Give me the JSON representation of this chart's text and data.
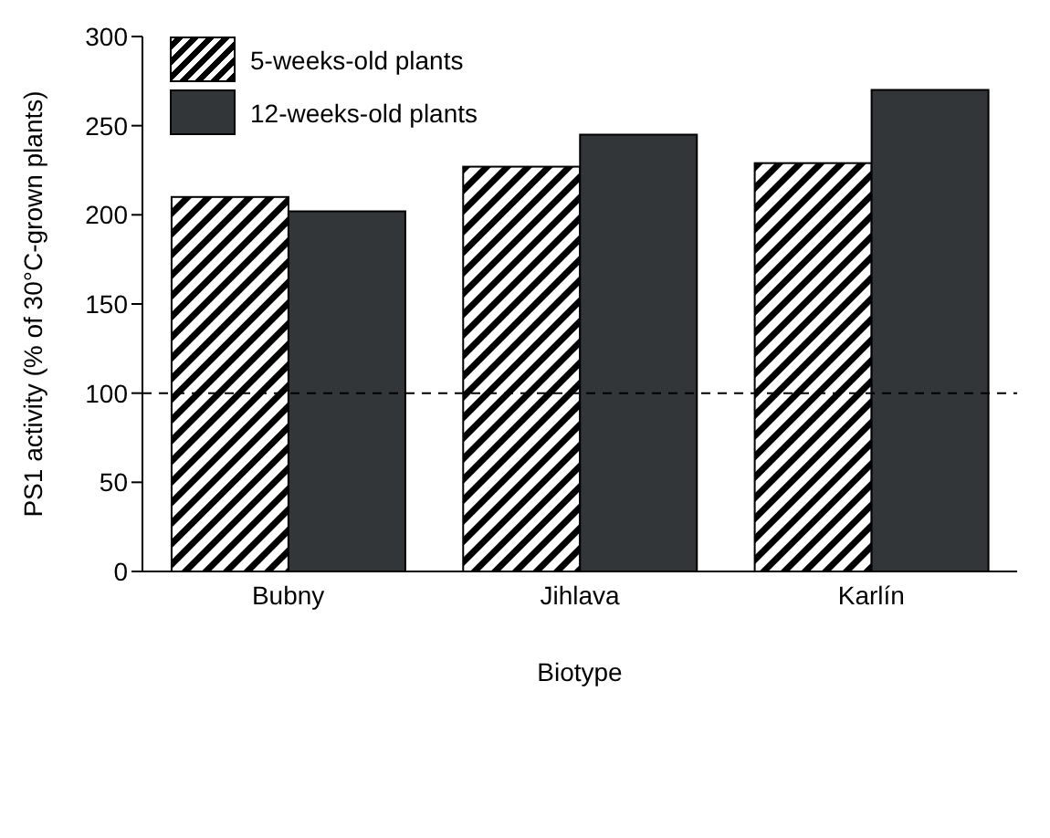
{
  "chart_data": {
    "type": "bar",
    "xlabel": "Biotype",
    "ylabel": "PS1 activity (% of 30°C-grown plants)",
    "categories": [
      "Bubny",
      "Jihlava",
      "Karlín"
    ],
    "series": [
      {
        "name": "5-weeks-old plants",
        "color": "#000000",
        "values": [
          210,
          227,
          229
        ]
      },
      {
        "name": "12-weeks-old plants",
        "color": "#323638",
        "values": [
          202,
          245,
          270
        ]
      }
    ],
    "ylim": [
      0,
      300
    ],
    "yticks": [
      0,
      50,
      100,
      150,
      200,
      250,
      300
    ],
    "ref_lines": [
      {
        "axis": "y",
        "value": 100,
        "line_style": "dashed",
        "color": "#000000"
      }
    ],
    "grid": false,
    "legend": "top left"
  }
}
